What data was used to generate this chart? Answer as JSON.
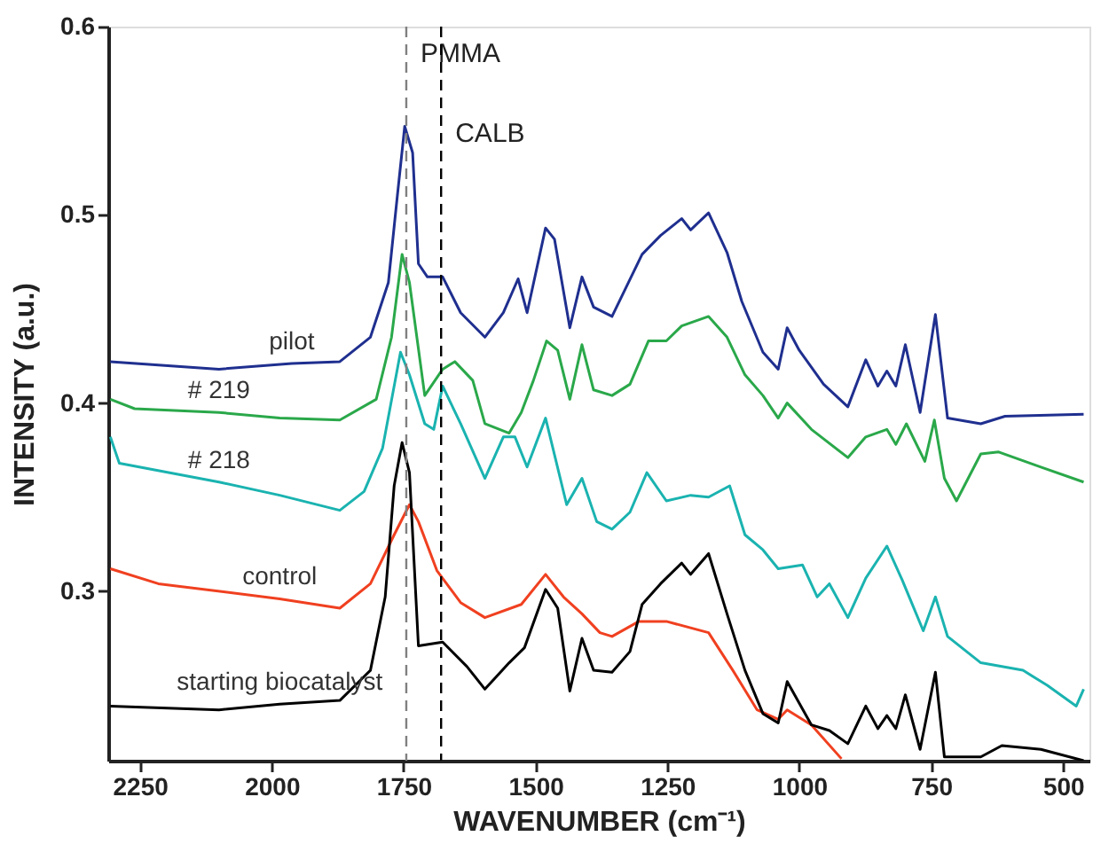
{
  "chart_data": {
    "type": "line",
    "xlabel": "WAVENUMBER (cm⁻¹)",
    "ylabel": "INTENSITY (a.u.)",
    "xlim": [
      2310,
      450
    ],
    "ylim": [
      0.21,
      0.6
    ],
    "xticks": [
      2250,
      2000,
      1750,
      1500,
      1250,
      1000,
      750,
      500
    ],
    "yticks": [
      0.3,
      0.4,
      0.5,
      0.6
    ],
    "grid": false,
    "marker": "none",
    "line_style": "solid",
    "ref_lines": [
      {
        "axis": "x",
        "value": 1745,
        "label": "PMMA",
        "color": "#808080",
        "line_style": "dashed"
      },
      {
        "axis": "x",
        "value": 1679,
        "label": "CALB",
        "color": "#000000",
        "line_style": "dashed"
      }
    ],
    "series": [
      {
        "name": "pilot",
        "color": "#1f2f8f",
        "x": [
          2306,
          2100,
          1962,
          1871,
          1813,
          1779,
          1762,
          1748,
          1733,
          1722,
          1705,
          1676,
          1642,
          1596,
          1561,
          1533,
          1516,
          1481,
          1464,
          1435,
          1412,
          1390,
          1355,
          1298,
          1263,
          1223,
          1206,
          1172,
          1137,
          1109,
          1069,
          1040,
          1023,
          1000,
          954,
          908,
          874,
          851,
          834,
          817,
          799,
          771,
          742,
          719,
          656,
          610,
          461
        ],
        "values": [
          0.422,
          0.418,
          0.421,
          0.422,
          0.435,
          0.464,
          0.51,
          0.547,
          0.533,
          0.474,
          0.467,
          0.467,
          0.448,
          0.435,
          0.448,
          0.466,
          0.448,
          0.493,
          0.487,
          0.44,
          0.467,
          0.451,
          0.446,
          0.479,
          0.489,
          0.498,
          0.492,
          0.501,
          0.48,
          0.454,
          0.427,
          0.418,
          0.44,
          0.428,
          0.41,
          0.398,
          0.423,
          0.409,
          0.417,
          0.409,
          0.431,
          0.395,
          0.447,
          0.392,
          0.389,
          0.393,
          0.394
        ]
      },
      {
        "name": "# 219",
        "color": "#2aa84a",
        "x": [
          2306,
          2260,
          2100,
          1985,
          1871,
          1802,
          1773,
          1753,
          1739,
          1710,
          1676,
          1653,
          1619,
          1596,
          1550,
          1527,
          1504,
          1479,
          1458,
          1435,
          1412,
          1390,
          1355,
          1321,
          1286,
          1252,
          1223,
          1172,
          1137,
          1103,
          1069,
          1040,
          1023,
          977,
          908,
          874,
          834,
          817,
          797,
          762,
          744,
          725,
          702,
          656,
          622,
          542,
          461
        ],
        "values": [
          0.402,
          0.397,
          0.395,
          0.392,
          0.391,
          0.402,
          0.435,
          0.479,
          0.464,
          0.404,
          0.418,
          0.422,
          0.412,
          0.389,
          0.384,
          0.395,
          0.412,
          0.433,
          0.428,
          0.402,
          0.431,
          0.407,
          0.404,
          0.41,
          0.433,
          0.433,
          0.441,
          0.446,
          0.435,
          0.415,
          0.404,
          0.392,
          0.4,
          0.386,
          0.371,
          0.382,
          0.386,
          0.378,
          0.389,
          0.369,
          0.391,
          0.36,
          0.348,
          0.373,
          0.374,
          0.366,
          0.358
        ]
      },
      {
        "name": "# 218",
        "color": "#1ab3b0",
        "x": [
          2306,
          2289,
          2100,
          1985,
          1871,
          1825,
          1790,
          1756,
          1739,
          1710,
          1693,
          1676,
          1642,
          1596,
          1561,
          1539,
          1516,
          1481,
          1441,
          1412,
          1384,
          1355,
          1321,
          1289,
          1252,
          1206,
          1172,
          1132,
          1103,
          1069,
          1040,
          994,
          966,
          943,
          908,
          874,
          834,
          805,
          765,
          742,
          719,
          656,
          576,
          530,
          475,
          461
        ],
        "values": [
          0.382,
          0.368,
          0.358,
          0.351,
          0.343,
          0.353,
          0.376,
          0.427,
          0.415,
          0.389,
          0.386,
          0.409,
          0.389,
          0.36,
          0.382,
          0.382,
          0.366,
          0.392,
          0.346,
          0.36,
          0.337,
          0.333,
          0.342,
          0.363,
          0.348,
          0.351,
          0.35,
          0.356,
          0.33,
          0.322,
          0.312,
          0.314,
          0.297,
          0.304,
          0.286,
          0.307,
          0.324,
          0.306,
          0.279,
          0.297,
          0.276,
          0.262,
          0.258,
          0.25,
          0.239,
          0.248
        ]
      },
      {
        "name": "control",
        "color": "#f04020",
        "x": [
          2306,
          2215,
          1985,
          1871,
          1813,
          1768,
          1739,
          1722,
          1687,
          1642,
          1596,
          1527,
          1481,
          1447,
          1412,
          1378,
          1355,
          1304,
          1252,
          1172,
          1126,
          1080,
          1040,
          1023,
          977,
          920
        ],
        "values": [
          0.312,
          0.304,
          0.296,
          0.291,
          0.304,
          0.33,
          0.346,
          0.337,
          0.311,
          0.294,
          0.286,
          0.293,
          0.309,
          0.297,
          0.288,
          0.278,
          0.276,
          0.284,
          0.284,
          0.278,
          0.258,
          0.237,
          0.232,
          0.237,
          0.229,
          0.211
        ]
      },
      {
        "name": "starting biocatalyst",
        "color": "#000000",
        "x": [
          2306,
          2100,
          1985,
          1871,
          1813,
          1785,
          1768,
          1753,
          1739,
          1722,
          1676,
          1630,
          1596,
          1550,
          1521,
          1481,
          1458,
          1435,
          1412,
          1390,
          1355,
          1321,
          1298,
          1263,
          1223,
          1206,
          1172,
          1137,
          1103,
          1069,
          1040,
          1023,
          977,
          943,
          908,
          874,
          851,
          834,
          817,
          799,
          771,
          742,
          725,
          656,
          616,
          542,
          461
        ],
        "values": [
          0.239,
          0.237,
          0.24,
          0.242,
          0.258,
          0.297,
          0.356,
          0.379,
          0.363,
          0.271,
          0.273,
          0.26,
          0.248,
          0.262,
          0.27,
          0.301,
          0.291,
          0.247,
          0.275,
          0.258,
          0.257,
          0.268,
          0.293,
          0.304,
          0.315,
          0.309,
          0.32,
          0.288,
          0.258,
          0.235,
          0.23,
          0.252,
          0.229,
          0.226,
          0.219,
          0.239,
          0.227,
          0.234,
          0.227,
          0.245,
          0.216,
          0.257,
          0.212,
          0.212,
          0.218,
          0.216,
          0.21
        ]
      }
    ]
  }
}
